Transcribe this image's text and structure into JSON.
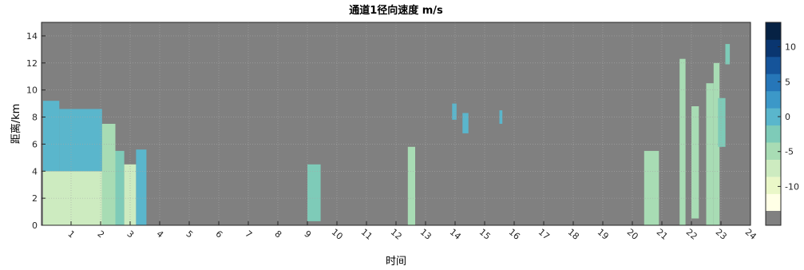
{
  "chart_data": {
    "type": "heatmap",
    "title": "通道1径向速度 m/s",
    "xlabel": "时间",
    "ylabel": "距离/km",
    "xlim": [
      0,
      24
    ],
    "ylim": [
      0,
      15
    ],
    "x_ticks": [
      "1",
      "2",
      "3",
      "4",
      "5",
      "6",
      "7",
      "8",
      "9",
      "10",
      "11",
      "12",
      "13",
      "14",
      "15",
      "16",
      "17",
      "18",
      "19",
      "20",
      "21",
      "22",
      "23",
      "24"
    ],
    "y_ticks": [
      "0",
      "2",
      "4",
      "6",
      "8",
      "10",
      "12",
      "14"
    ],
    "grid": true,
    "background_color": "#808080",
    "colorbar": {
      "range": [
        -13.5,
        13.5
      ],
      "tick_labels": [
        "10",
        "5",
        "0",
        "-5",
        "-10"
      ],
      "tick_values": [
        10,
        5,
        0,
        -5,
        -10
      ],
      "nodata_color": "#808080",
      "colors": [
        "#ffffe6",
        "#eaf7c8",
        "#cdebc0",
        "#a8dcb4",
        "#7ecbb8",
        "#5ab6cc",
        "#3c98c8",
        "#2676b8",
        "#15549a",
        "#0a3670",
        "#062244"
      ]
    },
    "regions": [
      {
        "t0": 0.05,
        "t1": 2.05,
        "r0": 0.0,
        "r1": 4.0,
        "v": -8
      },
      {
        "t0": 0.05,
        "t1": 0.6,
        "r0": 4.0,
        "r1": 9.2,
        "v": 0
      },
      {
        "t0": 0.6,
        "t1": 2.05,
        "r0": 4.0,
        "r1": 8.6,
        "v": 0
      },
      {
        "t0": 2.05,
        "t1": 2.5,
        "r0": 0.0,
        "r1": 7.5,
        "v": -6
      },
      {
        "t0": 2.5,
        "t1": 2.8,
        "r0": 0.0,
        "r1": 5.5,
        "v": -3
      },
      {
        "t0": 2.8,
        "t1": 3.2,
        "r0": 0.0,
        "r1": 4.5,
        "v": -7
      },
      {
        "t0": 3.2,
        "t1": 3.55,
        "r0": 0.0,
        "r1": 5.6,
        "v": 0
      },
      {
        "t0": 9.0,
        "t1": 9.45,
        "r0": 0.3,
        "r1": 4.5,
        "v": -2
      },
      {
        "t0": 12.4,
        "t1": 12.65,
        "r0": 0.0,
        "r1": 5.8,
        "v": -4
      },
      {
        "t0": 13.9,
        "t1": 14.05,
        "r0": 7.8,
        "r1": 9.0,
        "v": -1
      },
      {
        "t0": 14.25,
        "t1": 14.45,
        "r0": 6.8,
        "r1": 8.3,
        "v": 0
      },
      {
        "t0": 15.5,
        "t1": 15.6,
        "r0": 7.5,
        "r1": 8.5,
        "v": -1
      },
      {
        "t0": 20.4,
        "t1": 20.9,
        "r0": 0.0,
        "r1": 5.5,
        "v": -6
      },
      {
        "t0": 21.6,
        "t1": 21.8,
        "r0": 0.0,
        "r1": 12.3,
        "v": -6
      },
      {
        "t0": 22.0,
        "t1": 22.25,
        "r0": 0.5,
        "r1": 8.8,
        "v": -5
      },
      {
        "t0": 22.5,
        "t1": 22.75,
        "r0": 0.0,
        "r1": 10.5,
        "v": -4
      },
      {
        "t0": 22.75,
        "t1": 22.95,
        "r0": 0.0,
        "r1": 12.0,
        "v": -6
      },
      {
        "t0": 22.9,
        "t1": 23.15,
        "r0": 5.8,
        "r1": 9.4,
        "v": -2
      },
      {
        "t0": 23.15,
        "t1": 23.3,
        "r0": 11.9,
        "r1": 13.4,
        "v": -3
      }
    ]
  }
}
